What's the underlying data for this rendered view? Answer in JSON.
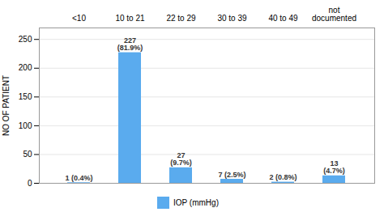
{
  "chart_data": {
    "type": "bar",
    "categories": [
      "<10",
      "10 to 21",
      "22 to 29",
      "30 to 39",
      "40 to 49",
      "not\ndocumented"
    ],
    "series": [
      {
        "name": "IOP (mmHg)",
        "color": "#5aabee",
        "values": [
          1,
          227,
          27,
          7,
          2,
          13
        ],
        "value_labels": [
          "1 (0.4%)",
          "227\n(81.9%)",
          "27\n(9.7%)",
          "7 (2.5%)",
          "2 (0.8%)",
          "13\n(4.7%)"
        ]
      }
    ],
    "ylabel": "NO OF PATIENT",
    "ylim": [
      0,
      270
    ],
    "yticks": [
      0,
      50,
      100,
      150,
      200,
      250
    ],
    "grid": true,
    "data_labels": true,
    "legend": "bottom"
  }
}
